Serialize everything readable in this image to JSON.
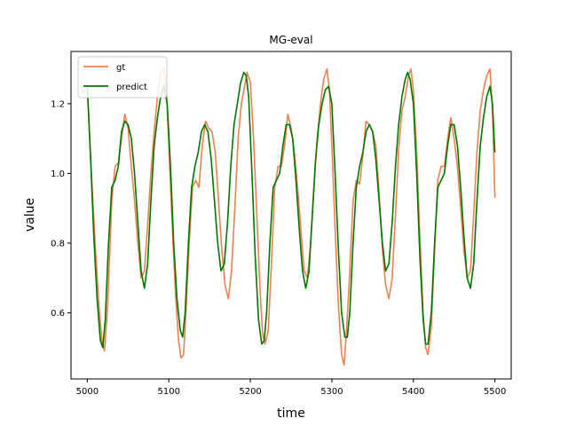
{
  "chart_data": {
    "type": "line",
    "title": "MG-eval",
    "xlabel": "time",
    "ylabel": "value",
    "xlim": [
      4980,
      5520
    ],
    "ylim": [
      0.41,
      1.35
    ],
    "xticks": [
      5000,
      5100,
      5200,
      5300,
      5400,
      5500
    ],
    "yticks": [
      0.6,
      0.8,
      1.0,
      1.2
    ],
    "xtick_labels": [
      "5000",
      "5100",
      "5200",
      "5300",
      "5400",
      "5500"
    ],
    "ytick_labels": [
      "0.6",
      "0.8",
      "1.0",
      "1.2"
    ],
    "grid": false,
    "legend_position": "top-left",
    "series": [
      {
        "name": "gt",
        "color": "#f08050",
        "x": [
          5000,
          5005,
          5010,
          5015,
          5018,
          5021,
          5025,
          5030,
          5034,
          5038,
          5042,
          5046,
          5050,
          5054,
          5058,
          5062,
          5066,
          5070,
          5074,
          5078,
          5082,
          5086,
          5090,
          5094,
          5097,
          5100,
          5104,
          5108,
          5112,
          5115,
          5118,
          5121,
          5125,
          5129,
          5133,
          5137,
          5141,
          5145,
          5149,
          5153,
          5157,
          5161,
          5165,
          5169,
          5173,
          5177,
          5181,
          5185,
          5189,
          5193,
          5196,
          5200,
          5204,
          5208,
          5212,
          5215,
          5218,
          5222,
          5226,
          5230,
          5234,
          5238,
          5242,
          5246,
          5250,
          5254,
          5258,
          5262,
          5266,
          5270,
          5274,
          5278,
          5282,
          5286,
          5290,
          5294,
          5297,
          5300,
          5304,
          5308,
          5312,
          5315,
          5318,
          5322,
          5326,
          5330,
          5334,
          5338,
          5342,
          5346,
          5350,
          5354,
          5358,
          5362,
          5366,
          5370,
          5374,
          5378,
          5382,
          5386,
          5390,
          5394,
          5397,
          5400,
          5404,
          5408,
          5412,
          5415,
          5418,
          5422,
          5426,
          5430,
          5434,
          5438,
          5442,
          5446,
          5450,
          5454,
          5458,
          5462,
          5466,
          5470,
          5474,
          5478,
          5482,
          5486,
          5490,
          5494,
          5497,
          5500
        ],
        "values": [
          1.24,
          1.0,
          0.78,
          0.6,
          0.52,
          0.49,
          0.62,
          0.92,
          1.02,
          1.03,
          1.1,
          1.17,
          1.13,
          1.02,
          0.92,
          0.8,
          0.7,
          0.72,
          0.85,
          1.0,
          1.12,
          1.22,
          1.29,
          1.3,
          1.24,
          1.08,
          0.86,
          0.66,
          0.52,
          0.47,
          0.48,
          0.6,
          0.8,
          0.96,
          0.98,
          0.96,
          1.08,
          1.15,
          1.13,
          1.12,
          1.06,
          0.92,
          0.78,
          0.68,
          0.64,
          0.72,
          0.9,
          1.1,
          1.2,
          1.25,
          1.29,
          1.26,
          1.1,
          0.88,
          0.66,
          0.54,
          0.51,
          0.55,
          0.75,
          0.96,
          1.02,
          1.02,
          1.08,
          1.17,
          1.13,
          1.06,
          0.96,
          0.84,
          0.72,
          0.7,
          0.8,
          0.96,
          1.1,
          1.2,
          1.27,
          1.3,
          1.24,
          1.08,
          0.84,
          0.62,
          0.48,
          0.45,
          0.55,
          0.72,
          0.92,
          0.98,
          0.97,
          1.05,
          1.15,
          1.14,
          1.12,
          1.08,
          0.94,
          0.78,
          0.68,
          0.64,
          0.7,
          0.88,
          1.07,
          1.18,
          1.22,
          1.28,
          1.3,
          1.24,
          1.06,
          0.82,
          0.6,
          0.5,
          0.48,
          0.56,
          0.78,
          0.98,
          1.02,
          1.02,
          1.1,
          1.16,
          1.1,
          1.02,
          0.9,
          0.78,
          0.7,
          0.72,
          0.88,
          1.06,
          1.18,
          1.24,
          1.28,
          1.3,
          1.18,
          0.93
        ]
      },
      {
        "name": "predict",
        "color": "#007700",
        "x": [
          5000,
          5004,
          5008,
          5012,
          5016,
          5019,
          5022,
          5026,
          5030,
          5034,
          5038,
          5042,
          5046,
          5050,
          5054,
          5058,
          5062,
          5066,
          5070,
          5074,
          5078,
          5082,
          5086,
          5090,
          5094,
          5098,
          5102,
          5106,
          5110,
          5114,
          5117,
          5120,
          5124,
          5128,
          5132,
          5136,
          5140,
          5144,
          5148,
          5152,
          5156,
          5160,
          5164,
          5168,
          5172,
          5176,
          5180,
          5184,
          5188,
          5192,
          5195,
          5198,
          5202,
          5206,
          5210,
          5214,
          5217,
          5220,
          5224,
          5228,
          5232,
          5236,
          5240,
          5244,
          5248,
          5252,
          5256,
          5260,
          5264,
          5268,
          5272,
          5276,
          5280,
          5284,
          5288,
          5292,
          5296,
          5300,
          5304,
          5308,
          5312,
          5316,
          5319,
          5322,
          5326,
          5330,
          5334,
          5338,
          5342,
          5346,
          5350,
          5354,
          5358,
          5362,
          5366,
          5370,
          5374,
          5378,
          5382,
          5386,
          5390,
          5393,
          5396,
          5400,
          5404,
          5408,
          5412,
          5415,
          5418,
          5422,
          5426,
          5430,
          5434,
          5438,
          5442,
          5446,
          5450,
          5454,
          5458,
          5462,
          5466,
          5470,
          5474,
          5478,
          5482,
          5486,
          5490,
          5494,
          5497,
          5500
        ],
        "values": [
          1.25,
          1.05,
          0.82,
          0.64,
          0.52,
          0.5,
          0.58,
          0.8,
          0.96,
          0.98,
          1.02,
          1.12,
          1.15,
          1.14,
          1.1,
          1.0,
          0.86,
          0.72,
          0.67,
          0.74,
          0.92,
          1.08,
          1.16,
          1.22,
          1.25,
          1.2,
          1.02,
          0.8,
          0.64,
          0.55,
          0.53,
          0.6,
          0.8,
          0.96,
          1.02,
          1.06,
          1.12,
          1.14,
          1.12,
          1.04,
          0.92,
          0.8,
          0.72,
          0.74,
          0.86,
          1.02,
          1.14,
          1.2,
          1.26,
          1.29,
          1.28,
          1.22,
          1.0,
          0.76,
          0.58,
          0.51,
          0.52,
          0.6,
          0.8,
          0.96,
          0.98,
          1.0,
          1.08,
          1.14,
          1.14,
          1.1,
          0.98,
          0.84,
          0.72,
          0.67,
          0.72,
          0.88,
          1.04,
          1.14,
          1.2,
          1.24,
          1.25,
          1.2,
          1.0,
          0.78,
          0.6,
          0.53,
          0.53,
          0.6,
          0.8,
          0.96,
          1.02,
          1.06,
          1.12,
          1.14,
          1.12,
          1.04,
          0.92,
          0.8,
          0.72,
          0.74,
          0.86,
          1.02,
          1.14,
          1.22,
          1.27,
          1.29,
          1.27,
          1.2,
          1.0,
          0.76,
          0.58,
          0.51,
          0.51,
          0.6,
          0.8,
          0.96,
          0.98,
          1.0,
          1.08,
          1.14,
          1.14,
          1.08,
          0.96,
          0.82,
          0.7,
          0.67,
          0.74,
          0.92,
          1.08,
          1.16,
          1.22,
          1.25,
          1.2,
          1.06
        ]
      }
    ]
  }
}
